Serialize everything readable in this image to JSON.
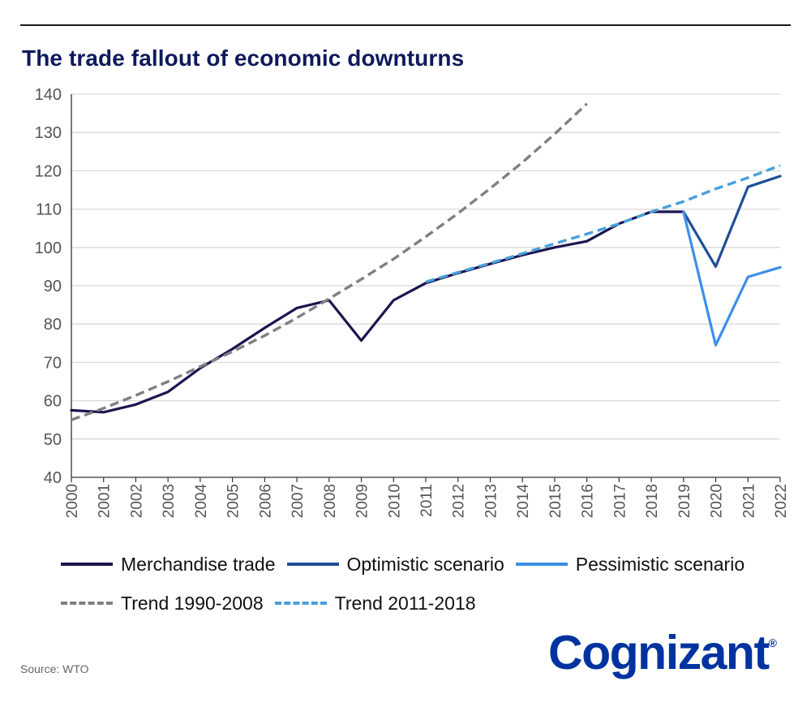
{
  "header": {
    "title": "The trade fallout of economic downturns"
  },
  "source": "Source: WTO",
  "logo": {
    "text": "Cognizant",
    "reg": "®",
    "color": "#0033a0"
  },
  "legend": {
    "row1": [
      {
        "label": "Merchandise trade",
        "color": "#1b1650",
        "dashed": false
      },
      {
        "label": "Optimistic scenario",
        "color": "#1f4e96",
        "dashed": false
      },
      {
        "label": "Pessimistic scenario",
        "color": "#3d8fe8",
        "dashed": false
      }
    ],
    "row2": [
      {
        "label": "Trend 1990-2008",
        "color": "#808080",
        "dashed": true
      },
      {
        "label": "Trend 2011-2018",
        "color": "#4aa0dc",
        "dashed": true
      }
    ]
  },
  "chart_data": {
    "type": "line",
    "title": "The trade fallout of economic downturns",
    "xlabel": "",
    "ylabel": "",
    "xlim": [
      2000,
      2022
    ],
    "ylim": [
      40,
      140
    ],
    "x_ticks": [
      2000,
      2001,
      2002,
      2003,
      2004,
      2005,
      2006,
      2007,
      2008,
      2009,
      2010,
      2011,
      2012,
      2013,
      2014,
      2015,
      2016,
      2017,
      2018,
      2019,
      2020,
      2021,
      2022
    ],
    "y_ticks": [
      40,
      50,
      60,
      70,
      80,
      90,
      100,
      110,
      120,
      130,
      140
    ],
    "grid": "horizontal",
    "legend_position": "bottom",
    "series": [
      {
        "name": "Merchandise trade",
        "color": "#1b1650",
        "style": "solid",
        "points": [
          [
            2000,
            57.5
          ],
          [
            2001,
            57.0
          ],
          [
            2002,
            59.0
          ],
          [
            2003,
            62.3
          ],
          [
            2004,
            68.5
          ],
          [
            2005,
            73.5
          ],
          [
            2006,
            79.0
          ],
          [
            2007,
            84.2
          ],
          [
            2008,
            86.2
          ],
          [
            2009,
            75.7
          ],
          [
            2010,
            86.2
          ],
          [
            2011,
            90.7
          ],
          [
            2012,
            93.3
          ],
          [
            2013,
            95.7
          ],
          [
            2014,
            98.0
          ],
          [
            2015,
            100.0
          ],
          [
            2016,
            101.6
          ],
          [
            2017,
            106.2
          ],
          [
            2018,
            109.3
          ],
          [
            2019,
            109.3
          ]
        ]
      },
      {
        "name": "Optimistic scenario",
        "color": "#1f4e96",
        "style": "solid",
        "points": [
          [
            2019,
            109.3
          ],
          [
            2020,
            95.0
          ],
          [
            2021,
            115.8
          ],
          [
            2022,
            118.6
          ]
        ]
      },
      {
        "name": "Pessimistic scenario",
        "color": "#3d8fe8",
        "style": "solid",
        "points": [
          [
            2019,
            109.3
          ],
          [
            2020,
            74.5
          ],
          [
            2021,
            92.3
          ],
          [
            2022,
            94.8
          ]
        ]
      },
      {
        "name": "Trend 1990-2008",
        "color": "#808080",
        "style": "dashed",
        "points": [
          [
            2000,
            55.0
          ],
          [
            2001,
            58.0
          ],
          [
            2002,
            61.4
          ],
          [
            2003,
            65.0
          ],
          [
            2004,
            68.9
          ],
          [
            2005,
            72.8
          ],
          [
            2006,
            77.0
          ],
          [
            2007,
            81.6
          ],
          [
            2008,
            86.6
          ],
          [
            2009,
            91.7
          ],
          [
            2010,
            97.0
          ],
          [
            2011,
            102.8
          ],
          [
            2012,
            108.9
          ],
          [
            2013,
            115.4
          ],
          [
            2014,
            122.2
          ],
          [
            2015,
            129.6
          ],
          [
            2016,
            137.5
          ]
        ]
      },
      {
        "name": "Trend 2011-2018",
        "color": "#4aa0dc",
        "style": "dashed",
        "points": [
          [
            2011,
            91.0
          ],
          [
            2012,
            93.5
          ],
          [
            2013,
            95.9
          ],
          [
            2014,
            98.4
          ],
          [
            2015,
            101.0
          ],
          [
            2016,
            103.5
          ],
          [
            2017,
            106.2
          ],
          [
            2018,
            109.3
          ],
          [
            2019,
            112.0
          ],
          [
            2020,
            115.3
          ],
          [
            2021,
            118.2
          ],
          [
            2022,
            121.4
          ]
        ]
      }
    ]
  }
}
